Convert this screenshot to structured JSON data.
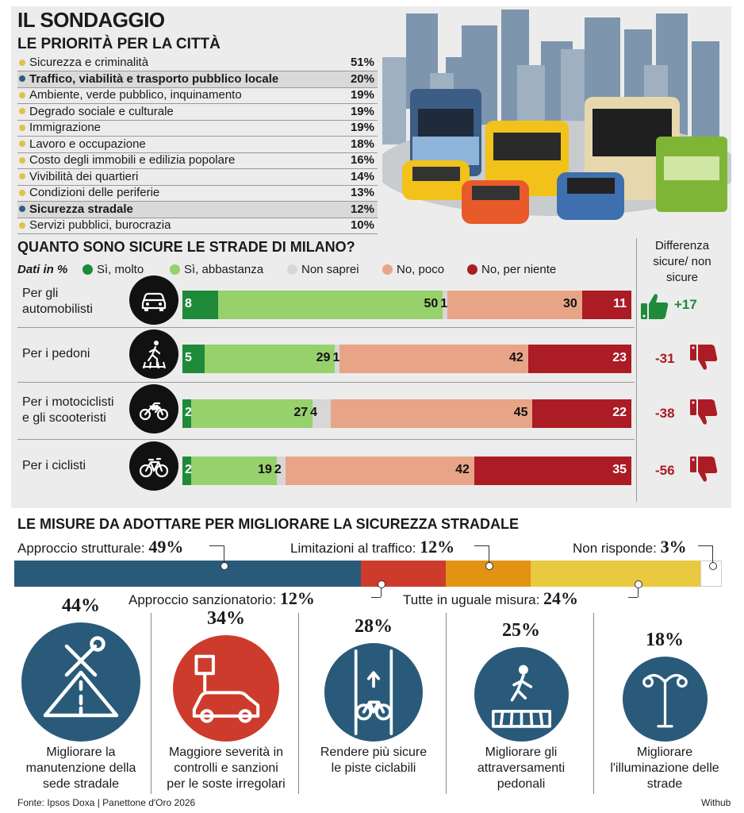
{
  "header": {
    "title": "IL SONDAGGIO",
    "subtitle": "LE PRIORITÀ PER LA CITTÀ"
  },
  "priorities": [
    {
      "label": "Sicurezza e criminalità",
      "pct": "51%",
      "highlight": false,
      "dot": "#e0c24a"
    },
    {
      "label": "Traffico, viabilità e trasporto pubblico locale",
      "pct": "20%",
      "highlight": true,
      "dot": "#2c5e7c"
    },
    {
      "label": "Ambiente, verde pubblico, inquinamento",
      "pct": "19%",
      "highlight": false,
      "dot": "#e0c24a"
    },
    {
      "label": "Degrado sociale e culturale",
      "pct": "19%",
      "highlight": false,
      "dot": "#e0c24a"
    },
    {
      "label": "Immigrazione",
      "pct": "19%",
      "highlight": false,
      "dot": "#e0c24a"
    },
    {
      "label": "Lavoro e occupazione",
      "pct": "18%",
      "highlight": false,
      "dot": "#e0c24a"
    },
    {
      "label": "Costo degli immobili e edilizia popolare",
      "pct": "16%",
      "highlight": false,
      "dot": "#e0c24a"
    },
    {
      "label": "Vivibilità dei quartieri",
      "pct": "14%",
      "highlight": false,
      "dot": "#e0c24a"
    },
    {
      "label": "Condizioni delle periferie",
      "pct": "13%",
      "highlight": false,
      "dot": "#e0c24a"
    },
    {
      "label": "Sicurezza stradale",
      "pct": "12%",
      "highlight": true,
      "dot": "#2c5e7c"
    },
    {
      "label": "Servizi pubblici, burocrazia",
      "pct": "10%",
      "highlight": false,
      "dot": "#e0c24a"
    }
  ],
  "chart_data": [
    {
      "type": "bar",
      "orientation": "horizontal",
      "stacked": true,
      "title": "QUANTO SONO SICURE LE STRADE DI MILANO?",
      "units_note": "Dati in %",
      "categories": [
        "Per gli automobilisti",
        "Per i pedoni",
        "Per i motociclisti e gli scooteristi",
        "Per i ciclisti"
      ],
      "series": [
        {
          "name": "Sì, molto",
          "color": "#1e8a3a",
          "values": [
            8,
            5,
            2,
            2
          ]
        },
        {
          "name": "Sì, abbastanza",
          "color": "#97d16c",
          "values": [
            50,
            29,
            27,
            19
          ]
        },
        {
          "name": "Non saprei",
          "color": "#d7d7d7",
          "values": [
            1,
            1,
            4,
            2
          ]
        },
        {
          "name": "No, poco",
          "color": "#e8a486",
          "values": [
            30,
            42,
            45,
            42
          ]
        },
        {
          "name": "No, per niente",
          "color": "#ab1c25",
          "values": [
            11,
            23,
            22,
            35
          ]
        }
      ],
      "difference_header": "Differenza sicure/ non sicure",
      "differences": [
        "+17",
        "-31",
        "-38",
        "-56"
      ],
      "difference_colors": [
        "#1e8a3a",
        "#ab1c25",
        "#ab1c25",
        "#ab1c25"
      ]
    },
    {
      "type": "bar",
      "orientation": "horizontal",
      "stacked": true,
      "title": "LE MISURE DA ADOTTARE PER MIGLIORARE LA SICUREZZA STRADALE",
      "categories": [
        "Approccio strutturale",
        "Approccio sanzionatorio",
        "Limitazioni al traffico",
        "Tutte in uguale misura",
        "Non risponde"
      ],
      "values": [
        49,
        12,
        12,
        24,
        3
      ],
      "value_labels": [
        "49%",
        "12%",
        "12%",
        "24%",
        "3%"
      ],
      "colors": [
        "#2a5a7a",
        "#cd3b2c",
        "#e29314",
        "#e8c940",
        "#ffffff"
      ]
    },
    {
      "type": "bar",
      "title": "Approccio strutturale",
      "categories": [
        "Migliorare la manutenzione della sede stradale",
        "Maggiore severità in controlli e sanzioni per le soste irregolari",
        "Rendere più sicure le piste ciclabili",
        "Migliorare gli attraversamenti pedonali",
        "Migliorare l'illuminazione delle strade"
      ],
      "values": [
        44,
        34,
        28,
        25,
        18
      ],
      "value_labels": [
        "44%",
        "34%",
        "28%",
        "25%",
        "18%"
      ]
    }
  ],
  "rows": [
    {
      "label": "Per gli automobilisti",
      "icon": "car-icon"
    },
    {
      "label": "Per i pedoni",
      "icon": "pedestrian-icon"
    },
    {
      "label": "Per i motociclisti e gli scooteristi",
      "icon": "motorcycle-icon"
    },
    {
      "label": "Per i ciclisti",
      "icon": "bicycle-icon"
    }
  ],
  "measures": [
    {
      "label": "Migliorare la manutenzione della sede stradale",
      "pct": "44%",
      "icon": "road-repair-icon",
      "color": "#2a5a7a"
    },
    {
      "label": "Maggiore severità in controlli e sanzioni per le soste irregolari",
      "pct": "34%",
      "icon": "parking-car-icon",
      "color": "#cd3b2c"
    },
    {
      "label": "Rendere più sicure le piste ciclabili",
      "pct": "28%",
      "icon": "bike-lane-icon",
      "color": "#2a5a7a"
    },
    {
      "label": "Migliorare gli attraversamenti pedonali",
      "pct": "25%",
      "icon": "crosswalk-icon",
      "color": "#2a5a7a"
    },
    {
      "label": "Migliorare l'illuminazione delle strade",
      "pct": "18%",
      "icon": "street-lamp-icon",
      "color": "#2a5a7a"
    }
  ],
  "footer": {
    "source": "Fonte: Ipsos Doxa | Panettone d'Oro 2026",
    "credit": "Withub"
  }
}
